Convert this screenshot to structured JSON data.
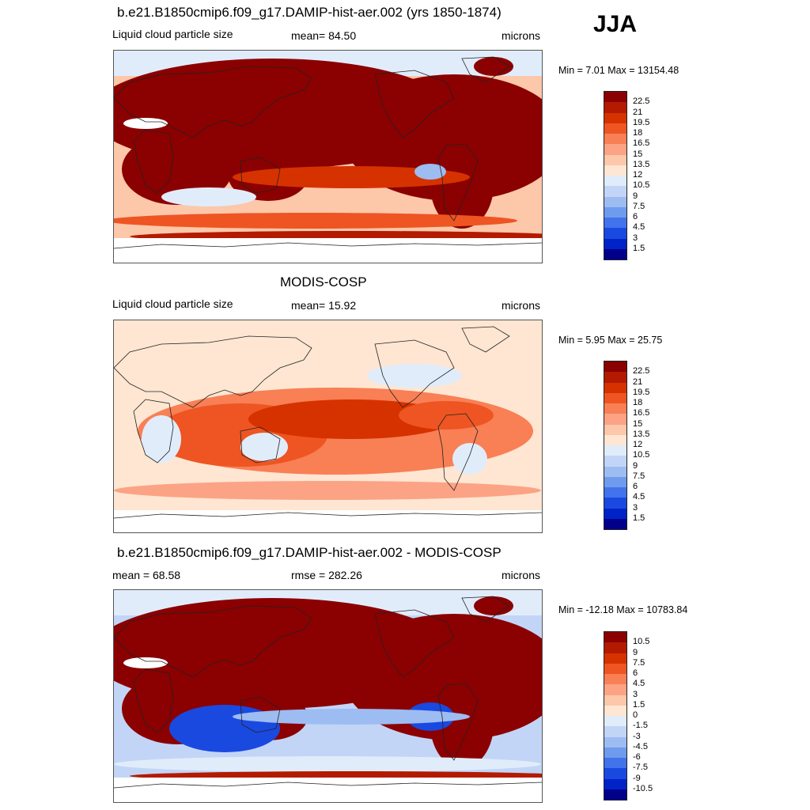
{
  "season": "JJA",
  "panels": [
    {
      "title": "b.e21.B1850cmip6.f09_g17.DAMIP-hist-aer.002 (yrs 1850-1874)",
      "left_label": "Liquid cloud particle size",
      "center_label": "mean=  84.50",
      "right_label": "microns",
      "minmax": "Min =   7.01 Max = 13154.48",
      "scale": "abs",
      "field": "model"
    },
    {
      "title": "MODIS-COSP",
      "left_label": "Liquid cloud particle size",
      "center_label": "mean=  15.92",
      "right_label": "microns",
      "minmax": "Min =   5.95 Max =  25.75",
      "scale": "abs",
      "field": "obs"
    },
    {
      "title": "b.e21.B1850cmip6.f09_g17.DAMIP-hist-aer.002 - MODIS-COSP",
      "left_label": "mean =  68.58",
      "center_label": "rmse = 282.26",
      "right_label": "microns",
      "minmax": "Min = -12.18 Max = 10783.84",
      "scale": "diff",
      "field": "diff"
    }
  ],
  "colorbars": {
    "abs": {
      "labels": [
        "22.5",
        "21",
        "19.5",
        "18",
        "16.5",
        "15",
        "13.5",
        "12",
        "10.5",
        "9",
        "7.5",
        "6",
        "4.5",
        "3",
        "1.5"
      ],
      "colors": [
        "#8b0000",
        "#b31a00",
        "#d63200",
        "#ee5522",
        "#f97f55",
        "#fca385",
        "#fdc7aa",
        "#fee6d2",
        "#e1ecfb",
        "#c2d5f7",
        "#9dbcf2",
        "#6e9bee",
        "#4272ec",
        "#1a49e0",
        "#0023c8",
        "#00008b"
      ]
    },
    "diff": {
      "labels": [
        "10.5",
        "9",
        "7.5",
        "6",
        "4.5",
        "3",
        "1.5",
        "0",
        "-1.5",
        "-3",
        "-4.5",
        "-6",
        "-7.5",
        "-9",
        "-10.5"
      ],
      "colors": [
        "#8b0000",
        "#b31a00",
        "#d63200",
        "#ee5522",
        "#f97f55",
        "#fca385",
        "#fdc7aa",
        "#fee6d2",
        "#e1ecfb",
        "#c2d5f7",
        "#9dbcf2",
        "#6e9bee",
        "#4272ec",
        "#1a49e0",
        "#0023c8",
        "#00008b"
      ]
    }
  }
}
